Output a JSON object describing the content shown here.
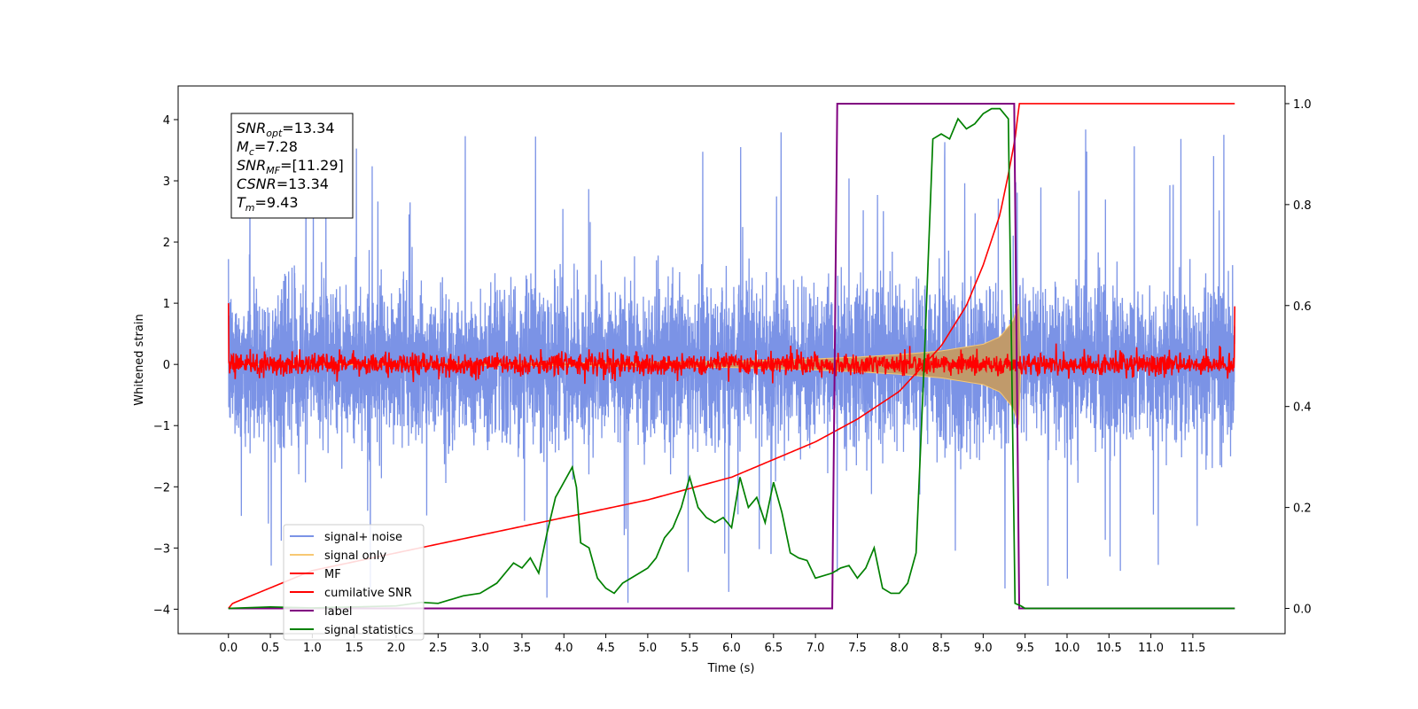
{
  "chart_data": {
    "type": "line",
    "xlabel": "Time (s)",
    "ylabel": "Whitened strain",
    "xlim": [
      -0.6,
      12.6
    ],
    "ylim_left": [
      -4.4,
      4.55
    ],
    "ylim_right": [
      -0.05,
      1.035
    ],
    "xticks": [
      0.0,
      0.5,
      1.0,
      1.5,
      2.0,
      2.5,
      3.0,
      3.5,
      4.0,
      4.5,
      5.0,
      5.5,
      6.0,
      6.5,
      7.0,
      7.5,
      8.0,
      8.5,
      9.0,
      9.5,
      10.0,
      10.5,
      11.0,
      11.5
    ],
    "xtick_labels": [
      "0.0",
      "0.5",
      "1.0",
      "1.5",
      "2.0",
      "2.5",
      "3.0",
      "3.5",
      "4.0",
      "4.5",
      "5.0",
      "5.5",
      "6.0",
      "6.5",
      "7.0",
      "7.5",
      "8.0",
      "8.5",
      "9.0",
      "9.5",
      "10.0",
      "10.5",
      "11.0",
      "11.5"
    ],
    "yticks_left": [
      -4,
      -3,
      -2,
      -1,
      0,
      1,
      2,
      3,
      4
    ],
    "ytick_labels_left": [
      "−4",
      "−3",
      "−2",
      "−1",
      "0",
      "1",
      "2",
      "3",
      "4"
    ],
    "yticks_right": [
      0.0,
      0.2,
      0.4,
      0.6,
      0.8,
      1.0
    ],
    "ytick_labels_right": [
      "0.0",
      "0.2",
      "0.4",
      "0.6",
      "0.8",
      "1.0"
    ],
    "grid": false,
    "legend_position": "lower-left",
    "annotation": [
      {
        "base": "SNR",
        "sub": "opt",
        "value": "=13.34"
      },
      {
        "base": "M",
        "sub": "c",
        "value": "=7.28"
      },
      {
        "base": "SNR",
        "sub": "MF",
        "value": "=[11.29]"
      },
      {
        "base": "CSNR",
        "sub": "",
        "value": "=13.34"
      },
      {
        "base": "T",
        "sub": "m",
        "value": "=9.43"
      }
    ],
    "series": [
      {
        "name": "signal+ noise",
        "color": "#7b93e6",
        "axis": "left",
        "style": "noise",
        "x_range": [
          0.0,
          12.0
        ],
        "envelope": {
          "typical_high": 1.5,
          "typical_low": -1.6,
          "peak_high": 4.15,
          "peak_low": -4.0
        }
      },
      {
        "name": "signal only",
        "color": "#f7c873",
        "axis": "left",
        "style": "chirp",
        "envelope_x": [
          0.0,
          4.0,
          6.0,
          7.0,
          7.5,
          8.0,
          8.5,
          9.0,
          9.2,
          9.35,
          9.43,
          9.45
        ],
        "envelope_y": [
          0.0,
          0.02,
          0.05,
          0.09,
          0.12,
          0.16,
          0.22,
          0.33,
          0.45,
          0.7,
          1.0,
          0.0
        ]
      },
      {
        "name": "MF",
        "color": "#ff0000",
        "axis": "left",
        "style": "mf",
        "x_range": [
          0.0,
          12.0
        ],
        "edge_values": [
          1.0,
          0.95
        ],
        "amplitude": 0.12
      },
      {
        "name": "cumilative SNR",
        "color": "#ff0000",
        "axis": "right",
        "style": "line",
        "x": [
          0.0,
          0.05,
          1.0,
          2.0,
          3.0,
          4.0,
          5.0,
          6.0,
          7.0,
          7.5,
          8.0,
          8.5,
          8.8,
          9.0,
          9.2,
          9.3,
          9.38,
          9.43,
          12.0
        ],
        "y": [
          0.0,
          0.01,
          0.075,
          0.11,
          0.145,
          0.18,
          0.215,
          0.26,
          0.33,
          0.375,
          0.43,
          0.52,
          0.6,
          0.68,
          0.78,
          0.86,
          0.93,
          1.0,
          1.0
        ]
      },
      {
        "name": "label",
        "color": "#800080",
        "axis": "right",
        "style": "line",
        "x": [
          0.0,
          7.2,
          7.26,
          9.37,
          9.43,
          12.0
        ],
        "y": [
          0.0,
          0.0,
          1.0,
          1.0,
          0.0,
          0.0
        ]
      },
      {
        "name": "signal statistics",
        "color": "#008000",
        "axis": "right",
        "style": "line",
        "x": [
          0.0,
          0.5,
          1.0,
          1.5,
          2.0,
          2.3,
          2.5,
          2.8,
          3.0,
          3.2,
          3.4,
          3.5,
          3.6,
          3.7,
          3.8,
          3.9,
          4.0,
          4.1,
          4.15,
          4.2,
          4.3,
          4.4,
          4.5,
          4.6,
          4.7,
          4.8,
          5.0,
          5.1,
          5.2,
          5.3,
          5.4,
          5.5,
          5.6,
          5.7,
          5.8,
          5.9,
          6.0,
          6.1,
          6.2,
          6.3,
          6.4,
          6.5,
          6.6,
          6.7,
          6.8,
          6.9,
          7.0,
          7.2,
          7.3,
          7.4,
          7.5,
          7.6,
          7.7,
          7.8,
          7.9,
          8.0,
          8.1,
          8.2,
          8.3,
          8.4,
          8.5,
          8.6,
          8.7,
          8.8,
          8.9,
          9.0,
          9.1,
          9.2,
          9.3,
          9.38,
          9.45,
          9.5,
          9.6,
          12.0
        ],
        "y": [
          0.0,
          0.003,
          0.001,
          0.003,
          0.005,
          0.012,
          0.01,
          0.025,
          0.03,
          0.05,
          0.09,
          0.08,
          0.1,
          0.07,
          0.15,
          0.22,
          0.25,
          0.28,
          0.24,
          0.13,
          0.12,
          0.06,
          0.04,
          0.03,
          0.05,
          0.06,
          0.08,
          0.1,
          0.14,
          0.16,
          0.2,
          0.26,
          0.2,
          0.18,
          0.17,
          0.18,
          0.16,
          0.26,
          0.2,
          0.22,
          0.17,
          0.25,
          0.19,
          0.11,
          0.1,
          0.095,
          0.06,
          0.07,
          0.08,
          0.085,
          0.06,
          0.08,
          0.12,
          0.04,
          0.03,
          0.03,
          0.05,
          0.11,
          0.5,
          0.93,
          0.94,
          0.93,
          0.97,
          0.95,
          0.96,
          0.98,
          0.99,
          0.99,
          0.97,
          0.01,
          0.005,
          0.0,
          0.0,
          0.0
        ]
      }
    ]
  }
}
